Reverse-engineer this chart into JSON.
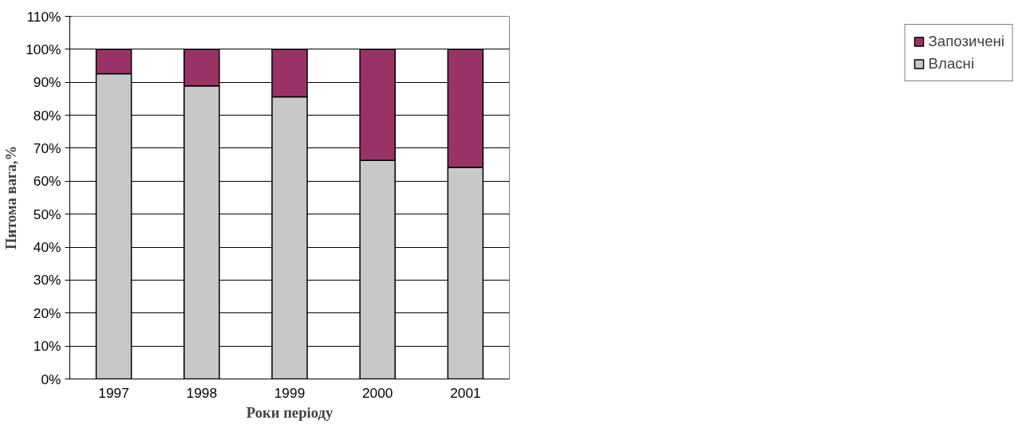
{
  "chart_data": {
    "type": "bar",
    "stacked": true,
    "xlabel": "Роки періоду",
    "ylabel": "Питома вага,%",
    "categories": [
      "1997",
      "1998",
      "1999",
      "2000",
      "2001"
    ],
    "series": [
      {
        "name": "Власні",
        "color": "#c8c8c8",
        "values": [
          92.6,
          88.9,
          85.6,
          66.3,
          64.2
        ]
      },
      {
        "name": "Запозичені",
        "color": "#993366",
        "values": [
          7.4,
          11.1,
          14.4,
          33.7,
          35.8
        ]
      }
    ],
    "ylim": [
      0,
      110
    ],
    "yticks": [
      {
        "value": 0,
        "label": "0%"
      },
      {
        "value": 10,
        "label": "10%"
      },
      {
        "value": 20,
        "label": "20%"
      },
      {
        "value": 30,
        "label": "30%"
      },
      {
        "value": 40,
        "label": "40%"
      },
      {
        "value": 50,
        "label": "50%"
      },
      {
        "value": 60,
        "label": "60%"
      },
      {
        "value": 70,
        "label": "70%"
      },
      {
        "value": 80,
        "label": "80%"
      },
      {
        "value": 90,
        "label": "90%"
      },
      {
        "value": 100,
        "label": "100%"
      },
      {
        "value": 110,
        "label": "110%"
      }
    ],
    "grid": "y",
    "legend": "right"
  }
}
